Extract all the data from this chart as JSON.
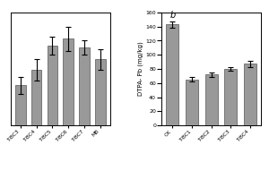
{
  "left_categories": [
    "T-BC3",
    "T-BC4",
    "T-BC5",
    "T-BC6",
    "T-BC7",
    "MB"
  ],
  "left_values": [
    103,
    112,
    126,
    130,
    125,
    118
  ],
  "left_errors": [
    5,
    6,
    5,
    7,
    4,
    6
  ],
  "left_ylim": [
    80,
    145
  ],
  "left_yticks": [
    80,
    90,
    100,
    110,
    120,
    130,
    140
  ],
  "right_categories": [
    "CK",
    "T-BC1",
    "T-BC2",
    "T-BC3",
    "T-BC4"
  ],
  "right_values": [
    143,
    65,
    72,
    80,
    87
  ],
  "right_errors": [
    4,
    3,
    3,
    3,
    5
  ],
  "right_ylabel": "DTPA- Pb (mg/kg)",
  "right_ylim": [
    0,
    160
  ],
  "right_yticks": [
    0,
    20,
    40,
    60,
    80,
    100,
    120,
    140,
    160
  ],
  "right_annotation": "b",
  "bar_color": "#999999",
  "bar_edgecolor": "#555555",
  "background_color": "#ffffff",
  "figure_color": "#ffffff"
}
